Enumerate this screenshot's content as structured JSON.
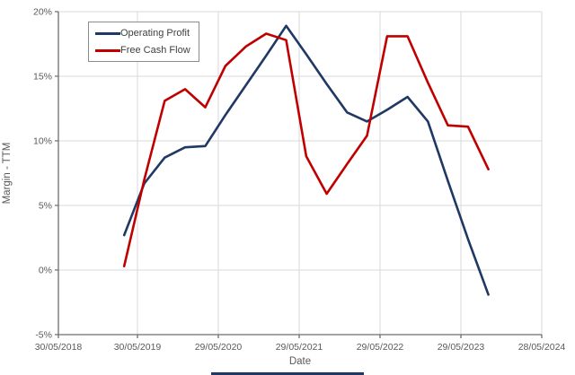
{
  "chart_data": {
    "type": "line",
    "title": "",
    "xlabel": "Date",
    "ylabel": "Margin - TTM",
    "x_tick_labels": [
      "30/05/2018",
      "30/05/2019",
      "29/05/2020",
      "29/05/2021",
      "29/05/2022",
      "29/05/2023",
      "28/05/2024"
    ],
    "y_ticks": [
      {
        "value": 20,
        "label": "20%"
      },
      {
        "value": 15,
        "label": "15%"
      },
      {
        "value": 10,
        "label": "10%"
      },
      {
        "value": 5,
        "label": "5%"
      },
      {
        "value": 0,
        "label": "0%"
      },
      {
        "value": -5,
        "label": "-5%"
      }
    ],
    "ylim": [
      -5,
      20
    ],
    "grid": true,
    "legend_position": "top-left",
    "series": [
      {
        "name": "Operating Profit",
        "color": "#1F3864",
        "points": [
          [
            "2019-03-31",
            2.7
          ],
          [
            "2019-06-30",
            6.7
          ],
          [
            "2019-09-30",
            8.7
          ],
          [
            "2019-12-31",
            9.5
          ],
          [
            "2020-03-31",
            9.6
          ],
          [
            "2020-06-30",
            12.0
          ],
          [
            "2020-09-30",
            14.3
          ],
          [
            "2020-12-31",
            16.6
          ],
          [
            "2021-03-31",
            18.9
          ],
          [
            "2021-06-30",
            16.7
          ],
          [
            "2021-09-30",
            14.4
          ],
          [
            "2021-12-31",
            12.2
          ],
          [
            "2022-03-31",
            11.5
          ],
          [
            "2022-06-30",
            12.4
          ],
          [
            "2022-09-30",
            13.4
          ],
          [
            "2022-12-31",
            11.5
          ],
          [
            "2023-03-31",
            6.9
          ],
          [
            "2023-06-30",
            2.4
          ],
          [
            "2023-09-30",
            -1.9
          ]
        ]
      },
      {
        "name": "Free Cash Flow",
        "color": "#C00000",
        "points": [
          [
            "2019-03-31",
            0.3
          ],
          [
            "2019-06-30",
            7.0
          ],
          [
            "2019-09-30",
            13.1
          ],
          [
            "2019-12-31",
            14.0
          ],
          [
            "2020-03-31",
            12.6
          ],
          [
            "2020-06-30",
            15.8
          ],
          [
            "2020-09-30",
            17.3
          ],
          [
            "2020-12-31",
            18.3
          ],
          [
            "2021-03-31",
            17.8
          ],
          [
            "2021-06-30",
            8.8
          ],
          [
            "2021-09-30",
            5.9
          ],
          [
            "2021-12-31",
            8.2
          ],
          [
            "2022-03-31",
            10.4
          ],
          [
            "2022-06-30",
            18.1
          ],
          [
            "2022-09-30",
            18.1
          ],
          [
            "2022-12-31",
            14.5
          ],
          [
            "2023-03-31",
            11.2
          ],
          [
            "2023-06-30",
            11.1
          ],
          [
            "2023-09-30",
            7.8
          ]
        ]
      }
    ]
  },
  "colors": {
    "gridline": "#DADADA",
    "axis": "#6E6E6E",
    "tick_label": "#595959",
    "legend_border": "#8C8C8C",
    "legend_text": "#404040",
    "bottom_strip": "#1F3864"
  }
}
